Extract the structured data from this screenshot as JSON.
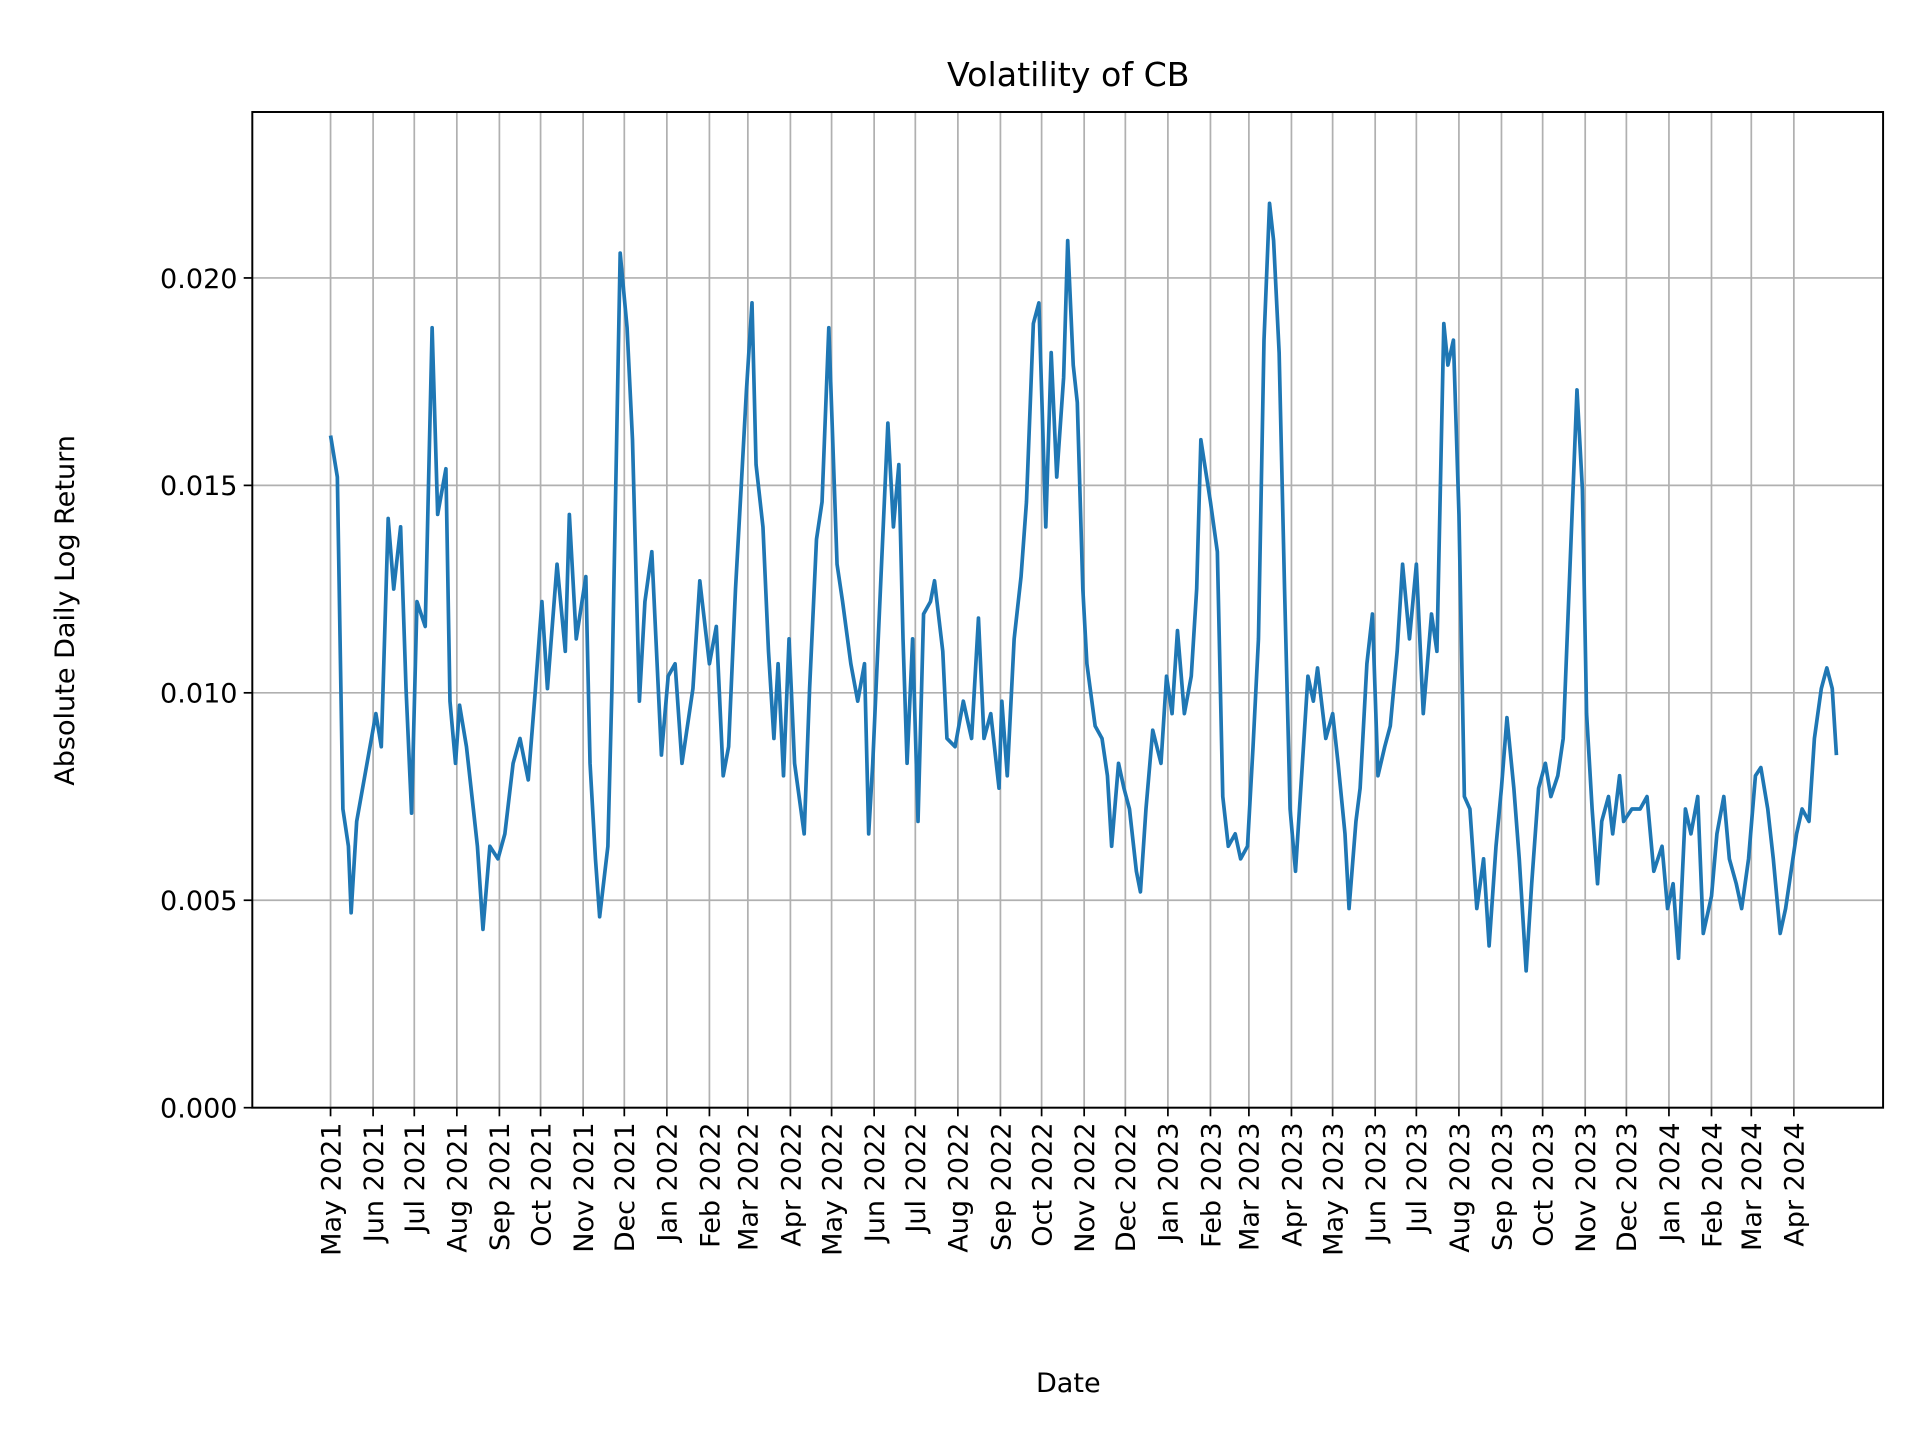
{
  "chart_data": {
    "type": "line",
    "title": "Volatility of CB",
    "xlabel": "Date",
    "ylabel": "Absolute Daily Log Return",
    "ylim": [
      0,
      0.024
    ],
    "yticks": [
      "0.000",
      "0.005",
      "0.010",
      "0.015",
      "0.020"
    ],
    "ytick_values": [
      0,
      0.005,
      0.01,
      0.015,
      0.02
    ],
    "xticks": [
      "May 2021",
      "Jun 2021",
      "Jul 2021",
      "Aug 2021",
      "Sep 2021",
      "Oct 2021",
      "Nov 2021",
      "Dec 2021",
      "Jan 2022",
      "Feb 2022",
      "Mar 2022",
      "Apr 2022",
      "May 2022",
      "Jun 2022",
      "Jul 2022",
      "Aug 2022",
      "Sep 2022",
      "Oct 2022",
      "Nov 2022",
      "Dec 2022",
      "Jan 2023",
      "Feb 2023",
      "Mar 2023",
      "Apr 2023",
      "May 2023",
      "Jun 2023",
      "Jul 2023",
      "Aug 2023",
      "Sep 2023",
      "Oct 2023",
      "Nov 2023",
      "Dec 2023",
      "Jan 2024",
      "Feb 2024",
      "Mar 2024",
      "Apr 2024"
    ],
    "xtick_dates": [
      "2021-05-01",
      "2021-06-01",
      "2021-07-01",
      "2021-08-01",
      "2021-09-01",
      "2021-10-01",
      "2021-11-01",
      "2021-12-01",
      "2022-01-01",
      "2022-02-01",
      "2022-03-01",
      "2022-04-01",
      "2022-05-01",
      "2022-06-01",
      "2022-07-01",
      "2022-08-01",
      "2022-09-01",
      "2022-10-01",
      "2022-11-01",
      "2022-12-01",
      "2023-01-01",
      "2023-02-01",
      "2023-03-01",
      "2023-04-01",
      "2023-05-01",
      "2023-06-01",
      "2023-07-01",
      "2023-08-01",
      "2023-09-01",
      "2023-10-01",
      "2023-11-01",
      "2023-12-01",
      "2024-01-01",
      "2024-02-01",
      "2024-03-01",
      "2024-04-01"
    ],
    "xlim": [
      "2021-03-05",
      "2024-06-05"
    ],
    "grid": true,
    "color": "#1f77b4",
    "series": [
      {
        "x": [
          "2021-05-01",
          "2021-05-06",
          "2021-05-10",
          "2021-05-14",
          "2021-05-16",
          "2021-05-20",
          "2021-06-03",
          "2021-06-07",
          "2021-06-12",
          "2021-06-16",
          "2021-06-21",
          "2021-06-25",
          "2021-06-29",
          "2021-07-03",
          "2021-07-09",
          "2021-07-14",
          "2021-07-18",
          "2021-07-24",
          "2021-07-27",
          "2021-07-31",
          "2021-08-03",
          "2021-08-08",
          "2021-08-13",
          "2021-08-16",
          "2021-08-20",
          "2021-08-25",
          "2021-08-31",
          "2021-09-05",
          "2021-09-11",
          "2021-09-16",
          "2021-09-22",
          "2021-09-27",
          "2021-10-02",
          "2021-10-06",
          "2021-10-13",
          "2021-10-19",
          "2021-10-22",
          "2021-10-27",
          "2021-11-03",
          "2021-11-06",
          "2021-11-10",
          "2021-11-13",
          "2021-11-19",
          "2021-11-22",
          "2021-11-28",
          "2021-12-03",
          "2021-12-07",
          "2021-12-12",
          "2021-12-16",
          "2021-12-21",
          "2021-12-28",
          "2022-01-02",
          "2022-01-07",
          "2022-01-12",
          "2022-01-20",
          "2022-01-25",
          "2022-02-01",
          "2022-02-06",
          "2022-02-11",
          "2022-02-15",
          "2022-02-20",
          "2022-02-24",
          "2022-02-28",
          "2022-03-04",
          "2022-03-07",
          "2022-03-12",
          "2022-03-16",
          "2022-03-20",
          "2022-03-23",
          "2022-03-27",
          "2022-03-31",
          "2022-04-04",
          "2022-04-11",
          "2022-04-15",
          "2022-04-20",
          "2022-04-24",
          "2022-04-29",
          "2022-05-05",
          "2022-05-09",
          "2022-05-15",
          "2022-05-20",
          "2022-05-25",
          "2022-05-28",
          "2022-05-31",
          "2022-06-06",
          "2022-06-11",
          "2022-06-15",
          "2022-06-19",
          "2022-06-22",
          "2022-06-25",
          "2022-06-29",
          "2022-07-03",
          "2022-07-07",
          "2022-07-12",
          "2022-07-15",
          "2022-07-21",
          "2022-07-24",
          "2022-07-30",
          "2022-08-05",
          "2022-08-11",
          "2022-08-16",
          "2022-08-20",
          "2022-08-25",
          "2022-08-31",
          "2022-09-02",
          "2022-09-06",
          "2022-09-11",
          "2022-09-16",
          "2022-09-20",
          "2022-09-25",
          "2022-09-29",
          "2022-10-04",
          "2022-10-08",
          "2022-10-12",
          "2022-10-17",
          "2022-10-20",
          "2022-10-24",
          "2022-10-27",
          "2022-10-31",
          "2022-11-03",
          "2022-11-09",
          "2022-11-14",
          "2022-11-18",
          "2022-11-21",
          "2022-11-26",
          "2022-11-30",
          "2022-12-04",
          "2022-12-09",
          "2022-12-12",
          "2022-12-16",
          "2022-12-21",
          "2022-12-27",
          "2022-12-31",
          "2023-01-04",
          "2023-01-08",
          "2023-01-13",
          "2023-01-18",
          "2023-01-22",
          "2023-01-25",
          "2023-02-01",
          "2023-02-06",
          "2023-02-10",
          "2023-02-14",
          "2023-02-19",
          "2023-02-23",
          "2023-02-28",
          "2023-03-04",
          "2023-03-08",
          "2023-03-12",
          "2023-03-16",
          "2023-03-19",
          "2023-03-23",
          "2023-03-27",
          "2023-03-31",
          "2023-04-04",
          "2023-04-09",
          "2023-04-13",
          "2023-04-17",
          "2023-04-20",
          "2023-04-26",
          "2023-05-01",
          "2023-05-05",
          "2023-05-10",
          "2023-05-13",
          "2023-05-18",
          "2023-05-21",
          "2023-05-26",
          "2023-05-30",
          "2023-06-03",
          "2023-06-08",
          "2023-06-12",
          "2023-06-17",
          "2023-06-21",
          "2023-06-26",
          "2023-07-01",
          "2023-07-06",
          "2023-07-12",
          "2023-07-16",
          "2023-07-21",
          "2023-07-24",
          "2023-07-28",
          "2023-08-01",
          "2023-08-05",
          "2023-08-09",
          "2023-08-14",
          "2023-08-19",
          "2023-08-23",
          "2023-08-28",
          "2023-09-01",
          "2023-09-05",
          "2023-09-10",
          "2023-09-14",
          "2023-09-19",
          "2023-09-23",
          "2023-09-28",
          "2023-10-03",
          "2023-10-07",
          "2023-10-12",
          "2023-10-16",
          "2023-10-21",
          "2023-10-26",
          "2023-10-30",
          "2023-11-02",
          "2023-11-06",
          "2023-11-10",
          "2023-11-13",
          "2023-11-18",
          "2023-11-21",
          "2023-11-26",
          "2023-11-29",
          "2023-12-05",
          "2023-12-11",
          "2023-12-16",
          "2023-12-21",
          "2023-12-27",
          "2023-12-31",
          "2024-01-04",
          "2024-01-08",
          "2024-01-13",
          "2024-01-17",
          "2024-01-22",
          "2024-01-26",
          "2024-02-01",
          "2024-02-05",
          "2024-02-10",
          "2024-02-14",
          "2024-02-19",
          "2024-02-23",
          "2024-02-28",
          "2024-03-04",
          "2024-03-08",
          "2024-03-13",
          "2024-03-17",
          "2024-03-22",
          "2024-03-26",
          "2024-04-03",
          "2024-04-07",
          "2024-04-12",
          "2024-04-16",
          "2024-04-21",
          "2024-04-25",
          "2024-04-29",
          "2024-05-02"
        ],
        "y": [
          0.0162,
          0.0152,
          0.0072,
          0.0063,
          0.0047,
          0.0069,
          0.0095,
          0.0087,
          0.0142,
          0.0125,
          0.014,
          0.0101,
          0.0071,
          0.0122,
          0.0116,
          0.0188,
          0.0143,
          0.0154,
          0.0098,
          0.0083,
          0.0097,
          0.0087,
          0.0072,
          0.0063,
          0.0043,
          0.0063,
          0.006,
          0.0066,
          0.0083,
          0.0089,
          0.0079,
          0.01,
          0.0122,
          0.0101,
          0.0131,
          0.011,
          0.0143,
          0.0113,
          0.0128,
          0.0083,
          0.006,
          0.0046,
          0.0063,
          0.0101,
          0.0206,
          0.0188,
          0.0161,
          0.0098,
          0.0122,
          0.0134,
          0.0085,
          0.0104,
          0.0107,
          0.0083,
          0.0101,
          0.0127,
          0.0107,
          0.0116,
          0.008,
          0.0087,
          0.0125,
          0.0149,
          0.0173,
          0.0194,
          0.0155,
          0.014,
          0.011,
          0.0089,
          0.0107,
          0.008,
          0.0113,
          0.0083,
          0.0066,
          0.0101,
          0.0137,
          0.0146,
          0.0188,
          0.0131,
          0.0122,
          0.0107,
          0.0098,
          0.0107,
          0.0066,
          0.0083,
          0.0128,
          0.0165,
          0.014,
          0.0155,
          0.0113,
          0.0083,
          0.0113,
          0.0069,
          0.0119,
          0.0122,
          0.0127,
          0.011,
          0.0089,
          0.0087,
          0.0098,
          0.0089,
          0.0118,
          0.0089,
          0.0095,
          0.0077,
          0.0098,
          0.008,
          0.0113,
          0.0128,
          0.0146,
          0.0189,
          0.0194,
          0.014,
          0.0182,
          0.0152,
          0.0176,
          0.0209,
          0.0179,
          0.017,
          0.0125,
          0.0107,
          0.0092,
          0.0089,
          0.008,
          0.0063,
          0.0083,
          0.0077,
          0.0072,
          0.0057,
          0.0052,
          0.0072,
          0.0091,
          0.0083,
          0.0104,
          0.0095,
          0.0115,
          0.0095,
          0.0104,
          0.0125,
          0.0161,
          0.0146,
          0.0134,
          0.0075,
          0.0063,
          0.0066,
          0.006,
          0.0063,
          0.0087,
          0.0113,
          0.0185,
          0.0218,
          0.0209,
          0.0182,
          0.0125,
          0.0072,
          0.0057,
          0.0083,
          0.0104,
          0.0098,
          0.0106,
          0.0089,
          0.0095,
          0.0083,
          0.0066,
          0.0048,
          0.0069,
          0.0077,
          0.0107,
          0.0119,
          0.008,
          0.0087,
          0.0092,
          0.011,
          0.0131,
          0.0113,
          0.0131,
          0.0095,
          0.0119,
          0.011,
          0.0189,
          0.0179,
          0.0185,
          0.0143,
          0.0075,
          0.0072,
          0.0048,
          0.006,
          0.0039,
          0.0063,
          0.0077,
          0.0094,
          0.0077,
          0.006,
          0.0033,
          0.0054,
          0.0077,
          0.0083,
          0.0075,
          0.008,
          0.0089,
          0.0131,
          0.0173,
          0.0149,
          0.0095,
          0.0072,
          0.0054,
          0.0069,
          0.0075,
          0.0066,
          0.008,
          0.0069,
          0.0072,
          0.0072,
          0.0075,
          0.0057,
          0.0063,
          0.0048,
          0.0054,
          0.0036,
          0.0072,
          0.0066,
          0.0075,
          0.0042,
          0.0051,
          0.0066,
          0.0075,
          0.006,
          0.0054,
          0.0048,
          0.006,
          0.008,
          0.0082,
          0.0072,
          0.006,
          0.0042,
          0.0048,
          0.0066,
          0.0072,
          0.0069,
          0.0089,
          0.0101,
          0.0106,
          0.0101,
          0.0085
        ]
      }
    ]
  }
}
